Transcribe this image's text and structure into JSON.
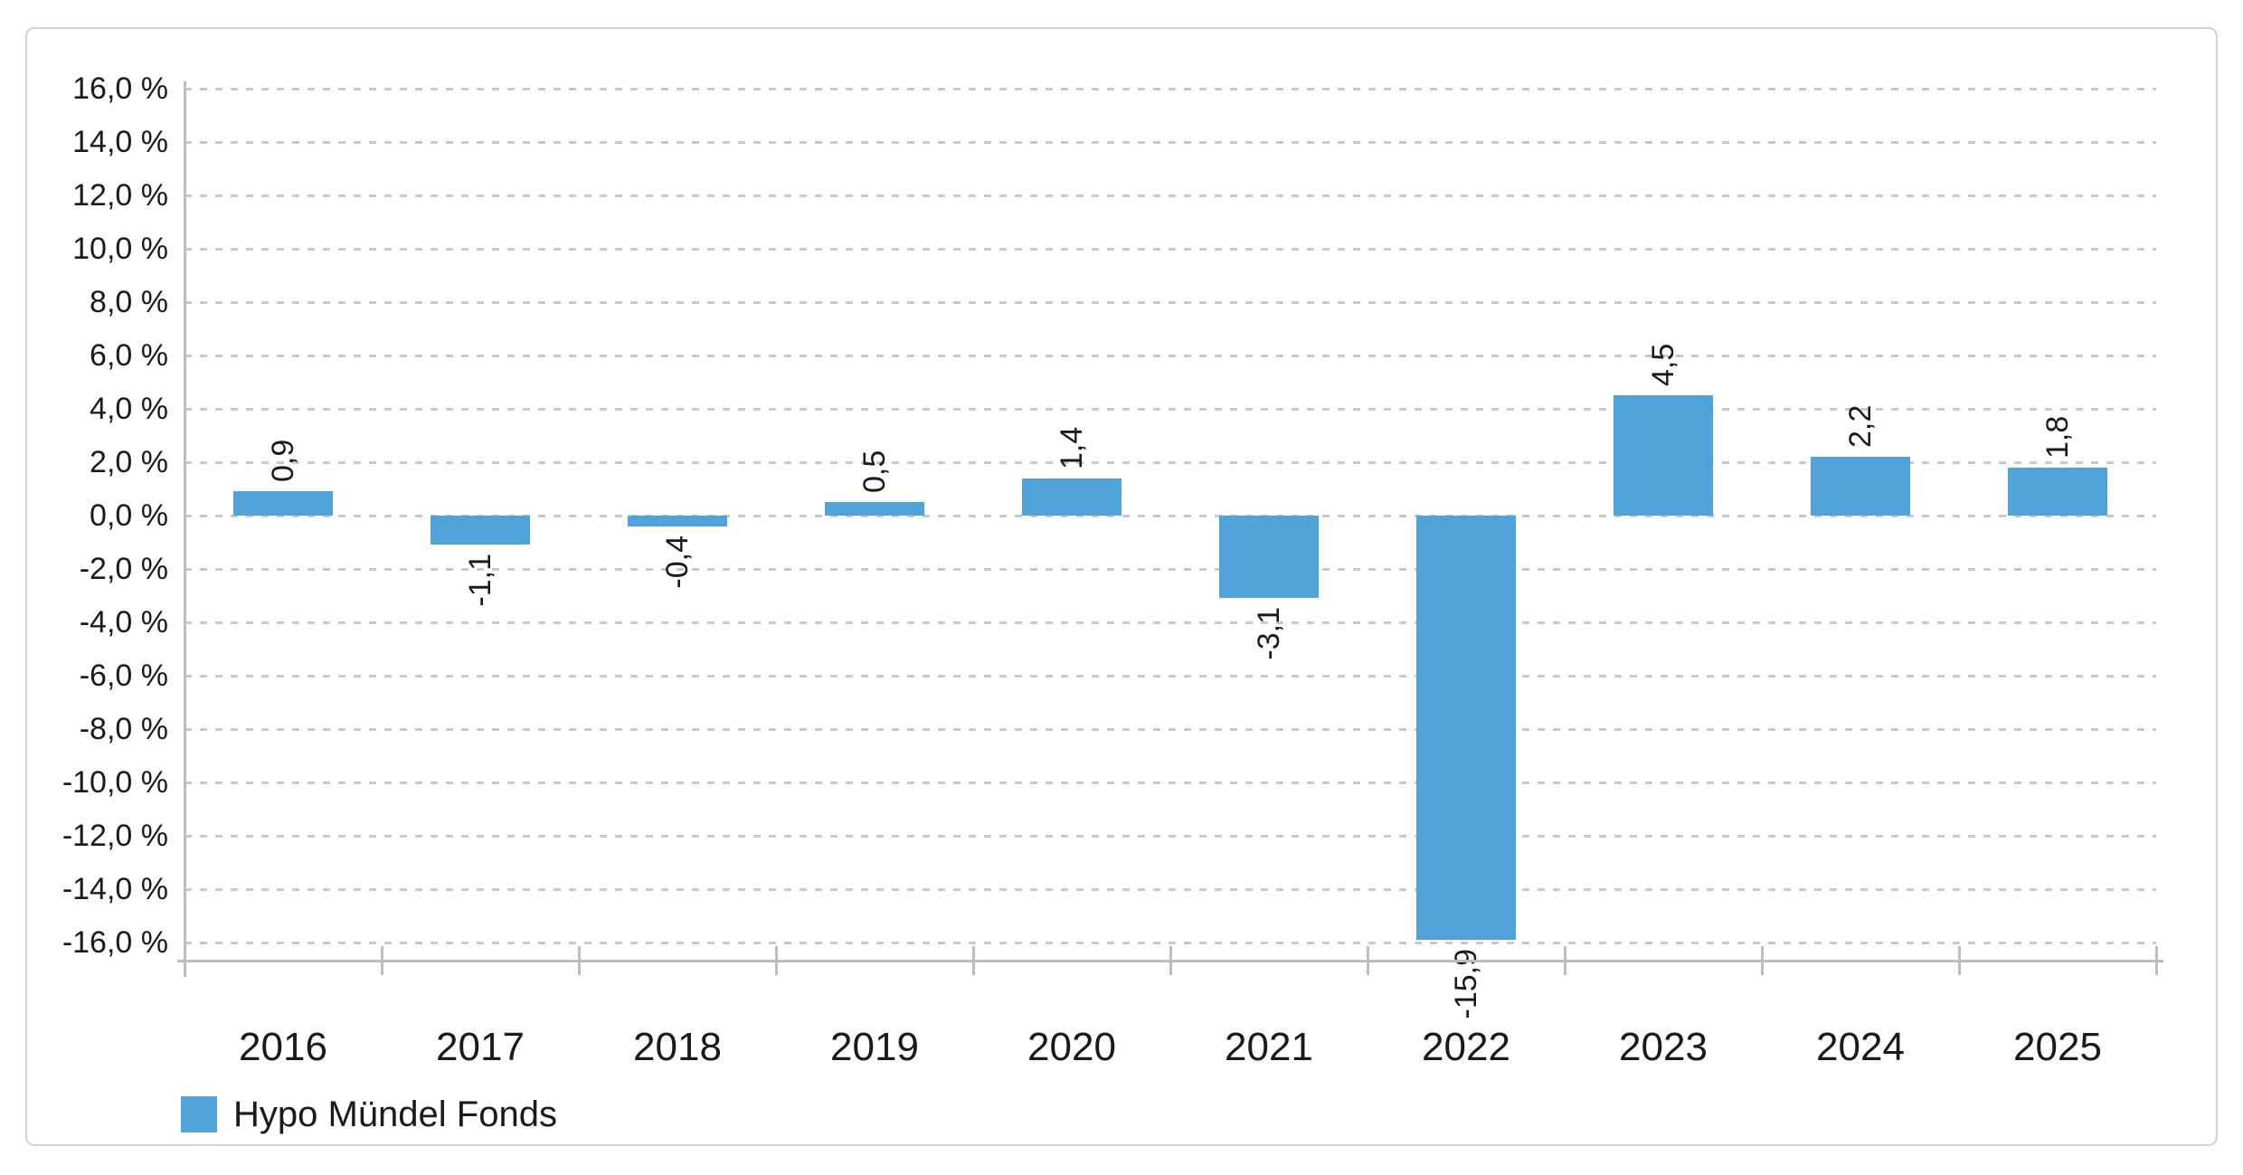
{
  "chart_data": {
    "type": "bar",
    "title": "",
    "categories": [
      "2016",
      "2017",
      "2018",
      "2019",
      "2020",
      "2021",
      "2022",
      "2023",
      "2024",
      "2025"
    ],
    "series": [
      {
        "name": "Hypo Mündel Fonds",
        "values": [
          0.9,
          -1.1,
          -0.4,
          0.5,
          1.4,
          -3.1,
          -15.9,
          4.5,
          2.2,
          1.8
        ],
        "value_labels": [
          "0,9",
          "-1,1",
          "-0,4",
          "0,5",
          "1,4",
          "-3,1",
          "-15,9",
          "4,5",
          "2,2",
          "1,8"
        ],
        "color": "#4fa3d9"
      }
    ],
    "xlabel": "",
    "ylabel": "",
    "ylim": [
      -16.7,
      16.0
    ],
    "ytick_step": 2,
    "yticks": [
      {
        "value": 16,
        "label": "16,0 %"
      },
      {
        "value": 14,
        "label": "14,0 %"
      },
      {
        "value": 12,
        "label": "12,0 %"
      },
      {
        "value": 10,
        "label": "10,0 %"
      },
      {
        "value": 8,
        "label": "8,0 %"
      },
      {
        "value": 6,
        "label": "6,0 %"
      },
      {
        "value": 4,
        "label": "4,0 %"
      },
      {
        "value": 2,
        "label": "2,0 %"
      },
      {
        "value": 0,
        "label": "0,0 %"
      },
      {
        "value": -2,
        "label": "-2,0 %"
      },
      {
        "value": -4,
        "label": "-4,0 %"
      },
      {
        "value": -6,
        "label": "-6,0 %"
      },
      {
        "value": -8,
        "label": "-8,0 %"
      },
      {
        "value": -10,
        "label": "-10,0 %"
      },
      {
        "value": -12,
        "label": "-12,0 %"
      },
      {
        "value": -14,
        "label": "-14,0 %"
      },
      {
        "value": -16,
        "label": "-16,0 %"
      }
    ],
    "grid": "horizontal-dashed",
    "legend_position": "bottom-left",
    "value_label_rotation": 90,
    "decimal_separator": ","
  },
  "legend": {
    "items": [
      {
        "label": "Hypo Mündel Fonds",
        "color": "#4fa3d9"
      }
    ]
  },
  "colors": {
    "bar": "#4fa3d9",
    "grid": "#c9c9c9",
    "axis": "#bdbdbd",
    "text": "#1a1a1a",
    "card_border": "#cfd2d6",
    "background": "#ffffff"
  }
}
